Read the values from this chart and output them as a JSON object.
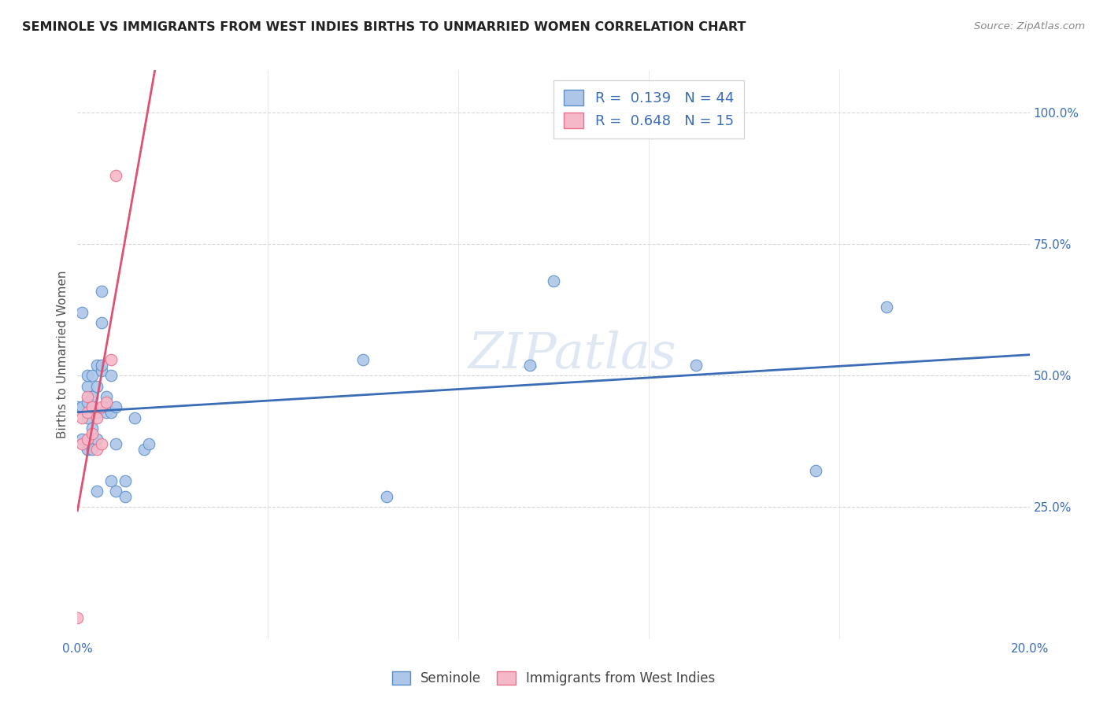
{
  "title": "SEMINOLE VS IMMIGRANTS FROM WEST INDIES BIRTHS TO UNMARRIED WOMEN CORRELATION CHART",
  "source": "Source: ZipAtlas.com",
  "xlabel_label": "Seminole",
  "ylabel_label": "Births to Unmarried Women",
  "xlabel2_label": "Immigrants from West Indies",
  "xlim": [
    0.0,
    0.2
  ],
  "ylim": [
    0.0,
    1.08
  ],
  "seminole_R": 0.139,
  "seminole_N": 44,
  "west_indies_R": 0.648,
  "west_indies_N": 15,
  "blue_fill": "#aec6e8",
  "pink_fill": "#f5b8c8",
  "blue_edge": "#5b8fc9",
  "pink_edge": "#e8708a",
  "blue_line_color": "#3a6db5",
  "pink_line_color": "#e05070",
  "seminole_x": [
    0.0,
    0.001,
    0.001,
    0.001,
    0.002,
    0.002,
    0.002,
    0.002,
    0.002,
    0.003,
    0.003,
    0.003,
    0.003,
    0.003,
    0.004,
    0.004,
    0.004,
    0.004,
    0.004,
    0.005,
    0.005,
    0.005,
    0.005,
    0.006,
    0.006,
    0.006,
    0.007,
    0.007,
    0.007,
    0.008,
    0.008,
    0.008,
    0.01,
    0.01,
    0.012,
    0.014,
    0.015,
    0.06,
    0.065,
    0.095,
    0.1,
    0.13,
    0.155,
    0.17
  ],
  "seminole_y": [
    0.44,
    0.38,
    0.44,
    0.62,
    0.36,
    0.42,
    0.45,
    0.48,
    0.5,
    0.36,
    0.4,
    0.44,
    0.46,
    0.5,
    0.28,
    0.38,
    0.43,
    0.48,
    0.52,
    0.51,
    0.52,
    0.6,
    0.66,
    0.43,
    0.44,
    0.46,
    0.3,
    0.43,
    0.5,
    0.28,
    0.37,
    0.44,
    0.27,
    0.3,
    0.42,
    0.36,
    0.37,
    0.53,
    0.27,
    0.52,
    0.68,
    0.52,
    0.32,
    0.63
  ],
  "west_indies_x": [
    0.0,
    0.001,
    0.001,
    0.002,
    0.002,
    0.002,
    0.003,
    0.003,
    0.004,
    0.004,
    0.005,
    0.005,
    0.006,
    0.007,
    0.008
  ],
  "west_indies_y": [
    0.04,
    0.37,
    0.42,
    0.38,
    0.43,
    0.46,
    0.39,
    0.44,
    0.36,
    0.42,
    0.37,
    0.44,
    0.45,
    0.53,
    0.88
  ]
}
